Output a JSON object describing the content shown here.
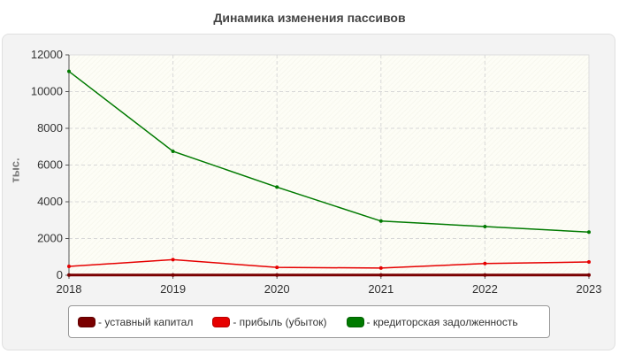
{
  "chart_data": {
    "type": "line",
    "title": "Динамика изменения пассивов",
    "xlabel": "",
    "ylabel": "тыс.",
    "x": [
      "2018",
      "2019",
      "2020",
      "2021",
      "2022",
      "2023"
    ],
    "ylim": [
      0,
      12000
    ],
    "yticks": [
      "0",
      "2000",
      "4000",
      "6000",
      "8000",
      "10000",
      "12000"
    ],
    "grid": true,
    "legend_position": "bottom",
    "series": [
      {
        "name": "- уставный капитал",
        "color": "#7a0000",
        "values": [
          10,
          10,
          10,
          10,
          10,
          10
        ]
      },
      {
        "name": "- прибыль (убыток)",
        "color": "#e60000",
        "values": [
          480,
          850,
          430,
          390,
          640,
          720
        ]
      },
      {
        "name": "- кредиторская задолженность",
        "color": "#007a00",
        "values": [
          11100,
          6750,
          4800,
          2950,
          2650,
          2350
        ]
      }
    ]
  }
}
